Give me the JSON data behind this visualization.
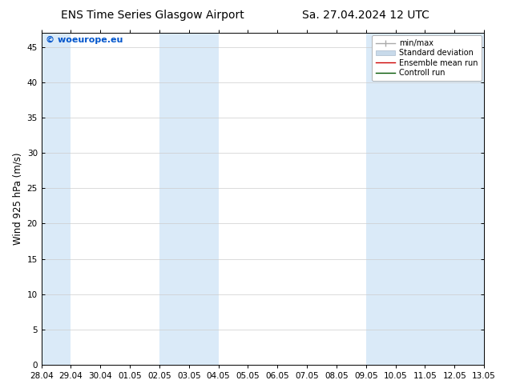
{
  "title_left": "ENS Time Series Glasgow Airport",
  "title_right": "Sa. 27.04.2024 12 UTC",
  "ylabel": "Wind 925 hPa (m/s)",
  "ylim": [
    0,
    47
  ],
  "yticks": [
    0,
    5,
    10,
    15,
    20,
    25,
    30,
    35,
    40,
    45
  ],
  "watermark": "© woeurope.eu",
  "watermark_color": "#0055cc",
  "background_color": "#ffffff",
  "plot_bg_color": "#ffffff",
  "shade_color": "#daeaf8",
  "x_labels": [
    "28.04",
    "29.04",
    "30.04",
    "01.05",
    "02.05",
    "03.05",
    "04.05",
    "05.05",
    "06.05",
    "07.05",
    "08.05",
    "09.05",
    "10.05",
    "11.05",
    "12.05",
    "13.05"
  ],
  "shaded_x_indices": [
    0,
    2,
    8,
    10,
    22,
    24,
    26
  ],
  "x_positions": [
    0,
    2,
    4,
    6,
    8,
    10,
    12,
    14,
    16,
    18,
    20,
    22,
    24,
    26,
    28,
    30
  ],
  "legend_entries": [
    {
      "label": "min/max",
      "color": "#aaaaaa",
      "lw": 1.0
    },
    {
      "label": "Standard deviation",
      "color": "#c8daea",
      "lw": 6.0
    },
    {
      "label": "Ensemble mean run",
      "color": "#cc0000",
      "lw": 1.0
    },
    {
      "label": "Controll run",
      "color": "#005500",
      "lw": 1.0
    }
  ],
  "title_fontsize": 10,
  "tick_fontsize": 7.5,
  "label_fontsize": 8.5,
  "watermark_fontsize": 8,
  "grid_color": "#cccccc",
  "spine_color": "#000000",
  "font_family": "DejaVu Sans"
}
